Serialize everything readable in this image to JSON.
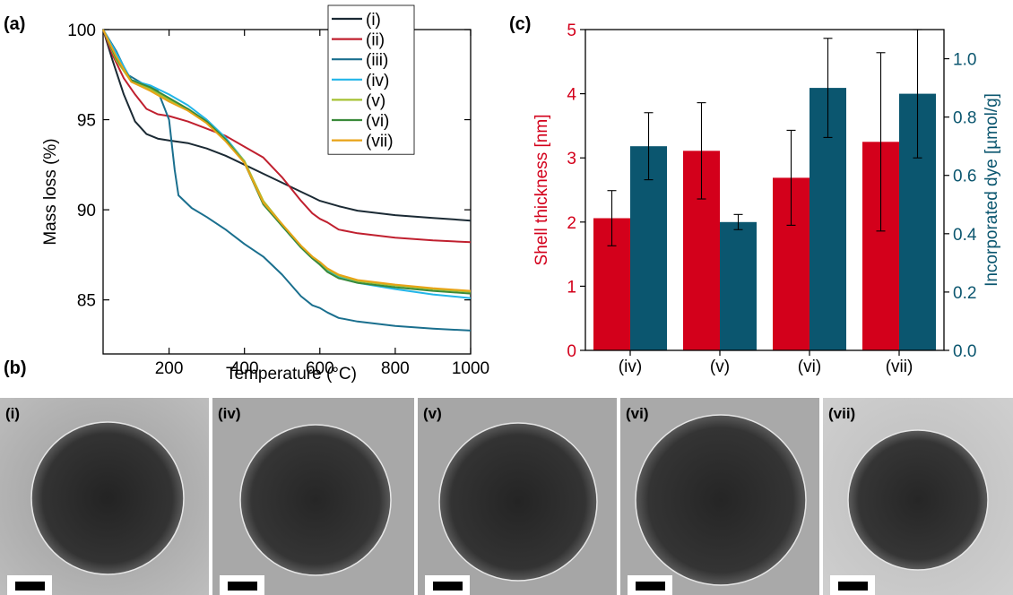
{
  "panel_labels": {
    "a": "(a)",
    "b": "(b)",
    "c": "(c)"
  },
  "colors": {
    "i": "#1b2a34",
    "ii": "#c0202f",
    "iii": "#1a6f8e",
    "iv": "#22b5e8",
    "v": "#a6c133",
    "vi": "#3a8a3a",
    "vii": "#e8a317",
    "bar_red": "#d3001b",
    "bar_teal": "#0b566f"
  },
  "chart_data": [
    {
      "type": "line",
      "xlabel": "Temperature (°C)",
      "ylabel": "Mass loss (%)",
      "xlim": [
        25,
        1000
      ],
      "ylim": [
        82,
        100
      ],
      "xticks": [
        200,
        400,
        600,
        800,
        1000
      ],
      "yticks": [
        85,
        90,
        95,
        100
      ],
      "grid": false,
      "legend_position": "top-right",
      "series": [
        {
          "name": "(i)",
          "color": "#1b2a34",
          "x": [
            25,
            50,
            80,
            110,
            140,
            170,
            200,
            250,
            300,
            350,
            400,
            450,
            500,
            550,
            580,
            600,
            650,
            700,
            800,
            900,
            1000
          ],
          "y": [
            100,
            98.3,
            96.4,
            94.9,
            94.2,
            93.95,
            93.85,
            93.7,
            93.4,
            93.0,
            92.5,
            92.0,
            91.5,
            91.0,
            90.7,
            90.5,
            90.2,
            89.95,
            89.7,
            89.55,
            89.4
          ]
        },
        {
          "name": "(ii)",
          "color": "#c0202f",
          "x": [
            25,
            50,
            80,
            110,
            140,
            170,
            200,
            250,
            300,
            350,
            400,
            450,
            500,
            550,
            580,
            600,
            620,
            650,
            700,
            800,
            900,
            1000
          ],
          "y": [
            100,
            98.6,
            97.3,
            96.4,
            95.6,
            95.3,
            95.2,
            94.9,
            94.5,
            94.1,
            93.5,
            92.9,
            91.8,
            90.5,
            89.8,
            89.5,
            89.3,
            88.9,
            88.7,
            88.45,
            88.3,
            88.2
          ]
        },
        {
          "name": "(iii)",
          "color": "#1a6f8e",
          "x": [
            25,
            60,
            90,
            130,
            170,
            200,
            215,
            225,
            260,
            300,
            350,
            400,
            450,
            500,
            550,
            580,
            600,
            620,
            650,
            700,
            800,
            900,
            1000
          ],
          "y": [
            100,
            98.8,
            97.5,
            97.0,
            96.6,
            95.0,
            92.2,
            90.8,
            90.1,
            89.6,
            88.9,
            88.1,
            87.4,
            86.4,
            85.2,
            84.7,
            84.55,
            84.3,
            84.0,
            83.8,
            83.55,
            83.4,
            83.3
          ]
        },
        {
          "name": "(iv)",
          "color": "#22b5e8",
          "x": [
            25,
            60,
            100,
            150,
            200,
            250,
            300,
            350,
            400,
            450,
            500,
            550,
            580,
            600,
            620,
            650,
            700,
            800,
            900,
            1000
          ],
          "y": [
            100,
            98.7,
            97.2,
            96.9,
            96.4,
            95.8,
            95.0,
            94.0,
            92.7,
            90.4,
            89.1,
            87.9,
            87.3,
            87.0,
            86.6,
            86.25,
            85.95,
            85.6,
            85.3,
            85.1
          ]
        },
        {
          "name": "(v)",
          "color": "#a6c133",
          "x": [
            25,
            60,
            100,
            150,
            200,
            250,
            300,
            350,
            400,
            450,
            500,
            550,
            580,
            600,
            620,
            650,
            700,
            800,
            900,
            1000
          ],
          "y": [
            100,
            98.3,
            97.1,
            96.7,
            96.1,
            95.6,
            94.9,
            93.9,
            92.7,
            90.5,
            89.2,
            88.0,
            87.4,
            87.1,
            86.7,
            86.35,
            86.05,
            85.8,
            85.6,
            85.45
          ]
        },
        {
          "name": "(vi)",
          "color": "#3a8a3a",
          "x": [
            25,
            60,
            100,
            150,
            200,
            250,
            300,
            350,
            400,
            450,
            500,
            550,
            580,
            600,
            620,
            650,
            700,
            800,
            900,
            1000
          ],
          "y": [
            100,
            98.4,
            97.2,
            96.8,
            96.2,
            95.6,
            94.9,
            93.9,
            92.6,
            90.3,
            89.1,
            87.9,
            87.3,
            86.95,
            86.55,
            86.2,
            85.95,
            85.7,
            85.5,
            85.35
          ]
        },
        {
          "name": "(vii)",
          "color": "#e8a317",
          "x": [
            25,
            60,
            100,
            150,
            200,
            250,
            300,
            350,
            400,
            450,
            500,
            550,
            580,
            600,
            620,
            650,
            700,
            800,
            900,
            1000
          ],
          "y": [
            100,
            98.5,
            97.1,
            96.6,
            96.0,
            95.5,
            94.8,
            93.8,
            92.6,
            90.4,
            89.2,
            88.0,
            87.4,
            87.1,
            86.75,
            86.4,
            86.1,
            85.85,
            85.65,
            85.5
          ]
        }
      ]
    },
    {
      "type": "bar",
      "categories": [
        "(iv)",
        "(v)",
        "(vi)",
        "(vii)"
      ],
      "ylabel": "Shell thickness [nm]",
      "ylabel_right": "Incorporated dye [µmol/g]",
      "ylim": [
        0,
        5
      ],
      "ylim_right": [
        0,
        1.1
      ],
      "yticks": [
        0,
        1,
        2,
        3,
        4,
        5
      ],
      "yticks_right": [
        0.0,
        0.2,
        0.4,
        0.6,
        0.8,
        1.0
      ],
      "ytick_labels_right": [
        "0.0",
        "0.2",
        "0.4",
        "0.6",
        "0.8",
        "1.0"
      ],
      "grid": false,
      "series": [
        {
          "name": "Shell thickness",
          "axis": "left",
          "color": "#d3001b",
          "values": [
            2.06,
            3.11,
            2.69,
            3.25
          ],
          "errors": [
            0.43,
            0.75,
            0.74,
            1.39
          ]
        },
        {
          "name": "Incorporated dye",
          "axis": "right",
          "color": "#0b566f",
          "values": [
            0.7,
            0.44,
            0.9,
            0.88
          ],
          "errors": [
            0.115,
            0.026,
            0.17,
            0.22
          ]
        }
      ]
    }
  ],
  "tem_images": [
    {
      "label": "(i)"
    },
    {
      "label": "(iv)"
    },
    {
      "label": "(v)"
    },
    {
      "label": "(vi)"
    },
    {
      "label": "(vii)"
    }
  ]
}
